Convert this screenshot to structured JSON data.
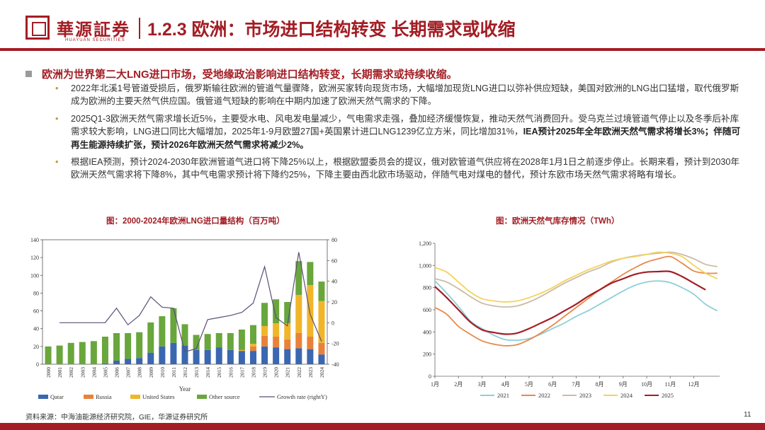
{
  "header": {
    "logo_cn": "華源証券",
    "logo_en": "HUAYUAN SECURITIES",
    "title": "1.2.3 欧洲：市场进口结构转变 长期需求或收缩"
  },
  "main_point": "欧洲为世界第二大LNG进口市场，受地缘政治影响进口结构转变，长期需求或持续收缩。",
  "bullets": {
    "b1": "2022年北溪1号管道受损后，俄罗斯输往欧洲的管道气量骤降，欧洲买家转向现货市场，大幅增加现货LNG进口以弥补供应短缺，美国对欧洲的LNG出口猛增，取代俄罗斯成为欧洲的主要天然气供应国。俄管道气短缺的影响在中期内加速了欧洲天然气需求的下降。",
    "b2_plain": "2025Q1-3欧洲天然气需求增长近5%，主要受水电、风电发电量减少，气电需求走强，叠加经济缓慢恢复，推动天然气消费回升。受乌克兰过境管道气停止以及冬季后补库需求较大影响，LNG进口同比大幅增加，2025年1-9月欧盟27国+英国累计进口LNG1239亿立方米，同比增加31%，",
    "b2_bold": "IEA预计2025年全年欧洲天然气需求将增长3%；伴随可再生能源持续扩张，预计2026年欧洲天然气需求将减少2%。",
    "b3": "根据IEA预测，预计2024-2030年欧洲管道气进口将下降25%以上，根据欧盟委员会的提议，俄对欧管道气供应将在2028年1月1日之前逐步停止。长期来看，预计到2030年欧洲天然气需求将下降8%，其中气电需求预计将下降约25%，下降主要由西北欧市场驱动，伴随气电对煤电的替代，预计东欧市场天然气需求将略有增长。"
  },
  "chart1_title": "图：2000-2024年欧洲LNG进口量结构（百万吨）",
  "chart2_title": "图：欧洲天然气库存情况（TWh）",
  "footer": {
    "source": "资料来源：中海油能源经济研究院，GIE，华源证券研究所",
    "page": "11"
  },
  "chart_data": [
    {
      "type": "bar",
      "stacked": true,
      "title": "图：2000-2024年欧洲LNG进口量结构（百万吨）",
      "xlabel": "Year",
      "ylabel": "",
      "ylim": [
        0,
        140
      ],
      "y2lim": [
        -40,
        80
      ],
      "y_ticks": [
        0,
        20,
        40,
        60,
        80,
        100,
        120,
        140
      ],
      "y2_ticks": [
        -40,
        -20,
        0,
        20,
        40,
        60,
        80
      ],
      "categories": [
        "2000",
        "2001",
        "2002",
        "2003",
        "2004",
        "2005",
        "2006",
        "2007",
        "2008",
        "2009",
        "2010",
        "2011",
        "2012",
        "2013",
        "2014",
        "2015",
        "2016",
        "2017",
        "2018",
        "2019",
        "2020",
        "2021",
        "2022",
        "2023",
        "2024"
      ],
      "series": [
        {
          "name": "Qatar",
          "color": "#3a67b0",
          "values": [
            0,
            0,
            0,
            0,
            0,
            1,
            4,
            6,
            7,
            13,
            20,
            24,
            21,
            16,
            16,
            19,
            16,
            15,
            15,
            20,
            19,
            17,
            18,
            17,
            11
          ]
        },
        {
          "name": "Russia",
          "color": "#e8823a",
          "values": [
            0,
            0,
            0,
            0,
            0,
            0,
            0,
            0,
            0,
            0,
            0,
            0,
            0,
            0,
            0,
            0,
            0,
            0,
            5,
            12,
            12,
            11,
            17,
            14,
            13
          ]
        },
        {
          "name": "United States",
          "color": "#f1b52a",
          "values": [
            0,
            0,
            0,
            0,
            0,
            0,
            0,
            0,
            0,
            0,
            0,
            0,
            0,
            0,
            0,
            0,
            0,
            1,
            3,
            11,
            15,
            18,
            43,
            58,
            47
          ]
        },
        {
          "name": "Other source",
          "color": "#69a63c",
          "values": [
            20,
            21,
            24,
            25,
            26,
            30,
            31,
            29,
            29,
            34,
            34,
            39,
            24,
            17,
            18,
            16,
            19,
            23,
            21,
            26,
            27,
            24,
            38,
            26,
            22
          ]
        }
      ],
      "growth_series": {
        "name": "Growth rate (rightY)",
        "axis": "right",
        "color": "#5a4f75",
        "values": [
          null,
          0,
          0,
          0,
          0,
          0,
          14,
          -2,
          7,
          25,
          15,
          14,
          -28,
          -25,
          3,
          5,
          7,
          10,
          19,
          54,
          5,
          -3,
          68,
          8,
          -18
        ]
      },
      "legend": [
        "Qatar",
        "Russia",
        "United States",
        "Other source",
        "Growth rate (rightY)"
      ]
    },
    {
      "type": "line",
      "title": "图：欧洲天然气库存情况（TWh）",
      "xlabel": "",
      "ylabel": "",
      "ylim": [
        0,
        1200
      ],
      "y_ticks": [
        0,
        200,
        400,
        600,
        800,
        1000,
        1200
      ],
      "y_tick_labels": [
        "0",
        "200",
        "400",
        "600",
        "800",
        "1,000",
        "1,200"
      ],
      "categories": [
        "1月",
        "2月",
        "3月",
        "4月",
        "5月",
        "6月",
        "7月",
        "8月",
        "9月",
        "10月",
        "11月",
        "12月"
      ],
      "x_range": [
        1,
        13.1
      ],
      "x_key_note": "x is month position (1 = start of January)",
      "series": [
        {
          "name": "2021",
          "color": "#8fcfd8",
          "x": [
            1,
            1.5,
            2,
            2.5,
            3,
            3.5,
            4,
            4.5,
            5,
            5.5,
            6,
            6.5,
            7,
            7.5,
            8,
            8.5,
            9,
            9.5,
            10,
            10.5,
            11,
            11.5,
            12,
            12.5,
            13
          ],
          "values": [
            860,
            750,
            630,
            500,
            430,
            370,
            330,
            325,
            340,
            380,
            430,
            480,
            540,
            590,
            650,
            710,
            770,
            820,
            850,
            860,
            845,
            800,
            740,
            650,
            590
          ]
        },
        {
          "name": "2022",
          "color": "#e8894a",
          "x": [
            1,
            1.5,
            2,
            2.5,
            3,
            3.5,
            4,
            4.5,
            5,
            5.5,
            6,
            6.5,
            7,
            7.5,
            8,
            8.5,
            9,
            9.5,
            10,
            10.5,
            11,
            11.5,
            12,
            12.5,
            13
          ],
          "values": [
            620,
            560,
            450,
            380,
            320,
            290,
            275,
            285,
            330,
            390,
            460,
            540,
            620,
            700,
            780,
            850,
            920,
            980,
            1030,
            1060,
            1080,
            1020,
            950,
            930,
            930
          ]
        },
        {
          "name": "2023",
          "color": "#c9bca6",
          "x": [
            1,
            1.5,
            2,
            2.5,
            3,
            3.5,
            4,
            4.5,
            5,
            5.5,
            6,
            6.5,
            7,
            7.5,
            8,
            8.5,
            9,
            9.5,
            10,
            10.5,
            11,
            11.5,
            12,
            12.5,
            13
          ],
          "values": [
            880,
            850,
            790,
            720,
            660,
            635,
            625,
            635,
            670,
            720,
            780,
            840,
            890,
            940,
            980,
            1030,
            1065,
            1085,
            1100,
            1110,
            1120,
            1100,
            1060,
            1010,
            990
          ]
        },
        {
          "name": "2024",
          "color": "#f3d25e",
          "x": [
            1,
            1.5,
            2,
            2.5,
            3,
            3.5,
            4,
            4.5,
            5,
            5.5,
            6,
            6.5,
            7,
            7.5,
            8,
            8.5,
            9,
            9.5,
            10,
            10.5,
            11,
            11.5,
            12,
            12.5,
            13
          ],
          "values": [
            980,
            940,
            850,
            760,
            700,
            680,
            670,
            680,
            710,
            750,
            800,
            860,
            910,
            960,
            1000,
            1040,
            1065,
            1080,
            1100,
            1120,
            1110,
            1080,
            1000,
            930,
            880
          ]
        },
        {
          "name": "2025",
          "color": "#a31d24",
          "x": [
            1,
            1.5,
            2,
            2.5,
            3,
            3.5,
            4,
            4.5,
            5,
            5.5,
            6,
            6.5,
            7,
            7.5,
            8,
            8.5,
            9,
            9.5,
            10,
            10.5,
            11,
            11.5,
            12,
            12.5
          ],
          "values": [
            810,
            710,
            600,
            490,
            420,
            395,
            380,
            390,
            430,
            480,
            530,
            590,
            650,
            720,
            780,
            840,
            880,
            920,
            940,
            945,
            945,
            900,
            840,
            780
          ]
        }
      ],
      "legend": [
        "2021",
        "2022",
        "2023",
        "2024",
        "2025"
      ]
    }
  ]
}
